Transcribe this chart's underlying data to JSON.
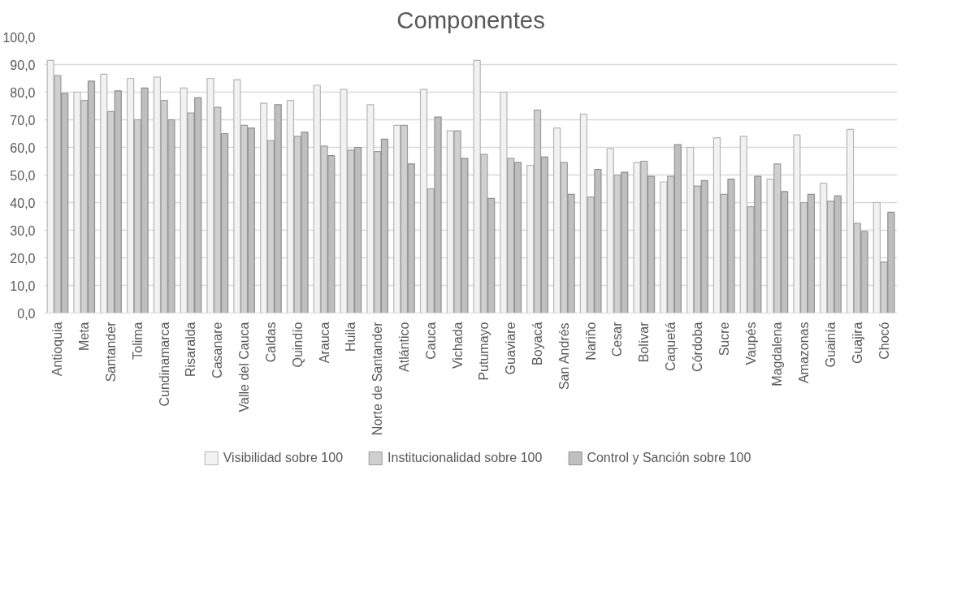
{
  "chart_data": {
    "type": "bar",
    "title": "Componentes",
    "categories": [
      "Antioquia",
      "Meta",
      "Santander",
      "Tolima",
      "Cundinamarca",
      "Risaralda",
      "Casanare",
      "Valle del Cauca",
      "Caldas",
      "Quindío",
      "Arauca",
      "Huila",
      "Norte de Santander",
      "Atlántico",
      "Cauca",
      "Vichada",
      "Putumayo",
      "Guaviare",
      "Boyacá",
      "San Andrés",
      "Nariño",
      "Cesar",
      "Bolívar",
      "Caquetá",
      "Córdoba",
      "Sucre",
      "Vaupés",
      "Magdalena",
      "Amazonas",
      "Guainía",
      "Guajira",
      "Chocó"
    ],
    "series": [
      {
        "name": "Visibilidad sobre 100",
        "color": "#f2f2f2",
        "values": [
          91.5,
          80,
          86.5,
          85,
          85.5,
          81.5,
          85,
          84.5,
          76,
          77,
          82.5,
          81,
          75.5,
          68,
          81,
          66,
          91.5,
          80,
          53.5,
          67,
          72,
          59.5,
          54.5,
          47.5,
          60,
          63.5,
          64,
          48.5,
          64.5,
          47,
          66.5,
          40
        ]
      },
      {
        "name": "Institucionalidad sobre 100",
        "color": "#d0d0d0",
        "values": [
          86,
          77,
          73,
          70,
          77,
          72.5,
          74.5,
          68,
          62.5,
          64,
          60.5,
          59,
          58.5,
          68,
          45,
          66,
          57.5,
          56,
          73.5,
          54.5,
          42,
          50,
          55,
          49.5,
          46,
          43,
          38.5,
          54,
          40,
          40.5,
          32.5,
          18.5
        ]
      },
      {
        "name": "Control y Sanción sobre 100",
        "color": "#bfbfbf",
        "values": [
          79.5,
          84,
          80.5,
          81.5,
          70,
          78,
          65,
          67,
          75.5,
          65.5,
          57,
          60,
          63,
          54,
          71,
          56,
          41.5,
          54.5,
          56.5,
          43,
          52,
          51,
          49.5,
          61,
          48,
          48.5,
          49.5,
          44,
          43,
          42.5,
          29.5,
          36.5
        ]
      }
    ],
    "ylim": [
      0,
      100
    ],
    "yticks": [
      {
        "value": 0,
        "label": "0,0"
      },
      {
        "value": 10,
        "label": "10,0"
      },
      {
        "value": 20,
        "label": "20,0"
      },
      {
        "value": 30,
        "label": "30,0"
      },
      {
        "value": 40,
        "label": "40,0"
      },
      {
        "value": 50,
        "label": "50,0"
      },
      {
        "value": 60,
        "label": "60,0"
      },
      {
        "value": 70,
        "label": "70,0"
      },
      {
        "value": 80,
        "label": "80,0"
      },
      {
        "value": 90,
        "label": "90,0"
      },
      {
        "value": 100,
        "label": "100,0"
      }
    ],
    "grid": "y",
    "legend": "bottom"
  }
}
